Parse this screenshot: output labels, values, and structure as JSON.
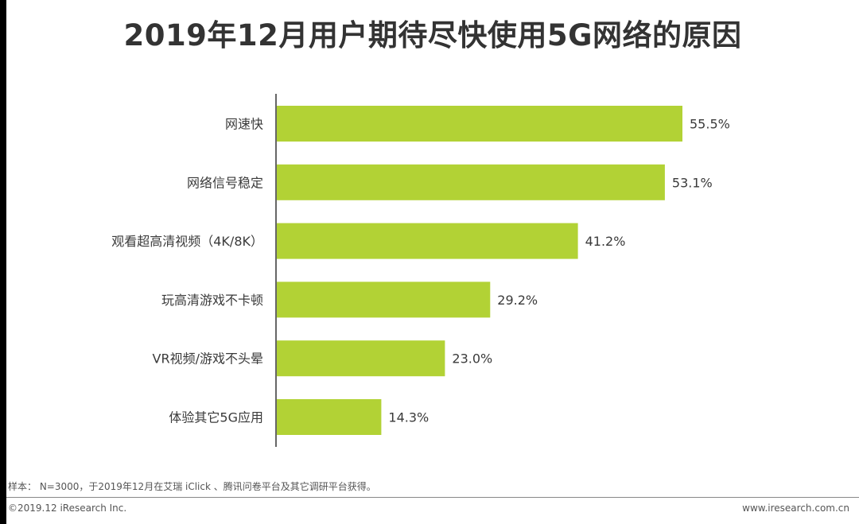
{
  "chart_data": {
    "type": "bar",
    "orientation": "horizontal",
    "title": "2019年12月用户期待尽快使用5G网络的原因",
    "categories": [
      "网速快",
      "网络信号稳定",
      "观看超高清视频（4K/8K）",
      "玩高清游戏不卡顿",
      "VR视频/游戏不头晕",
      "体验其它5G应用"
    ],
    "values": [
      55.5,
      53.1,
      41.2,
      29.2,
      23.0,
      14.3
    ],
    "value_labels": [
      "55.5%",
      "53.1%",
      "41.2%",
      "29.2%",
      "23.0%",
      "14.3%"
    ],
    "unit": "%",
    "xlim": [
      0,
      60
    ],
    "grid": false,
    "bar_color": "#b2d235"
  },
  "footer": {
    "note": "样本： N=3000，于2019年12月在艾瑞 iClick 、腾讯问卷平台及其它调研平台获得。",
    "copyright": "©2019.12 iResearch Inc.",
    "site": "www.iresearch.com.cn"
  },
  "colors": {
    "title": "#333333",
    "bar": "#b2d235",
    "axis": "#333333",
    "text": "#3a3a3a"
  }
}
